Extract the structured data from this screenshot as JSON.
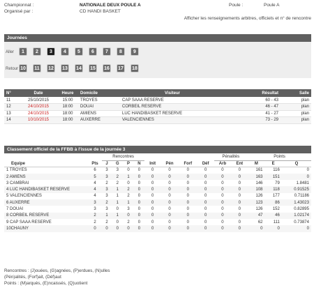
{
  "info": {
    "championnat_label": "Championnat :",
    "championnat_value": "NATIONALE DEUX POULE A",
    "poule_label": "Poule :",
    "poule_value": "Poule A",
    "organise_label": "Organisé par :",
    "organise_value": "CD HANDI BASKET",
    "link": "Afficher les renseignements arbitres, officiels et n° de rencontre"
  },
  "journees": {
    "title": "Journées",
    "aller_label": "Aller",
    "retour_label": "Retour",
    "aller": [
      "1",
      "2",
      "3",
      "4",
      "5",
      "6",
      "7",
      "8",
      "9"
    ],
    "retour": [
      "10",
      "11",
      "12",
      "13",
      "14",
      "15",
      "16",
      "17",
      "18"
    ],
    "active": "3"
  },
  "games": {
    "headers": [
      "N°",
      "Date",
      "Heure",
      "Domicile",
      "Visiteur",
      "Résultat",
      "Salle"
    ],
    "rows": [
      {
        "n": "11",
        "date": "25/10/2015",
        "heure": "15:00",
        "domicile": "TROYES",
        "visiteur": "CAP SAAA RESERVE",
        "resultat": "60 - 43",
        "salle": "plan",
        "red": false
      },
      {
        "n": "12",
        "date": "24/10/2015",
        "heure": "18:00",
        "domicile": "DOUAI",
        "visiteur": "CORBEIL RESERVE",
        "resultat": "46 - 47",
        "salle": "plan",
        "red": true
      },
      {
        "n": "13",
        "date": "24/10/2015",
        "heure": "18:00",
        "domicile": "AMIENS",
        "visiteur": "LUC HANDIBASKET RESERVE",
        "resultat": "41 - 27",
        "salle": "plan",
        "red": true
      },
      {
        "n": "14",
        "date": "10/10/2015",
        "heure": "18:00",
        "domicile": "AUXERRE",
        "visiteur": "VALENCIENNES",
        "resultat": "73 - 29",
        "salle": "plan",
        "red": true
      }
    ]
  },
  "classement": {
    "title": "Classement officiel de la FFBB à l'issue de la journée 3",
    "group_headers": {
      "rencontres": "Rencontres",
      "penalites": "Pénalités",
      "points": "Points"
    },
    "headers": [
      "Equipe",
      "Pts",
      "J",
      "G",
      "P",
      "N",
      "Init",
      "Pén",
      "Forf",
      "Déf",
      "Arb",
      "Ent",
      "M",
      "E",
      "Q"
    ],
    "rows": [
      [
        "1 TROYES",
        "6",
        "3",
        "3",
        "0",
        "0",
        "0",
        "0",
        "0",
        "0",
        "0",
        "0",
        "161",
        "116",
        "0"
      ],
      [
        "2 AMIENS",
        "5",
        "3",
        "2",
        "1",
        "0",
        "0",
        "0",
        "0",
        "0",
        "0",
        "0",
        "163",
        "151",
        "0"
      ],
      [
        "3 CAMBRAI",
        "4",
        "2",
        "2",
        "0",
        "0",
        "0",
        "0",
        "0",
        "0",
        "0",
        "0",
        "146",
        "79",
        "1.8481"
      ],
      [
        "4 LUC HANDIBASKET RESERVE",
        "4",
        "3",
        "1",
        "2",
        "0",
        "0",
        "0",
        "0",
        "0",
        "0",
        "0",
        "108",
        "118",
        "0.91525"
      ],
      [
        "5 VALENCIENNES",
        "4",
        "3",
        "1",
        "2",
        "0",
        "0",
        "0",
        "0",
        "0",
        "0",
        "0",
        "126",
        "177",
        "0.71186"
      ],
      [
        "6 AUXERRE",
        "3",
        "2",
        "1",
        "1",
        "0",
        "0",
        "0",
        "0",
        "0",
        "0",
        "0",
        "123",
        "86",
        "1.43023"
      ],
      [
        "7 DOUAI",
        "3",
        "3",
        "0",
        "3",
        "0",
        "0",
        "0",
        "0",
        "0",
        "0",
        "0",
        "126",
        "152",
        "0.82895"
      ],
      [
        "8 CORBEIL RESERVE",
        "2",
        "1",
        "1",
        "0",
        "0",
        "0",
        "0",
        "0",
        "0",
        "0",
        "0",
        "47",
        "46",
        "1.02174"
      ],
      [
        "9 CAP SAAA RESERVE",
        "2",
        "2",
        "0",
        "2",
        "0",
        "0",
        "0",
        "0",
        "0",
        "0",
        "0",
        "62",
        "111",
        "0.73874"
      ],
      [
        "10CHAUNY",
        "0",
        "0",
        "0",
        "0",
        "0",
        "0",
        "0",
        "0",
        "0",
        "0",
        "0",
        "0",
        "0",
        "0"
      ]
    ]
  },
  "legend": {
    "line1": "Rencontres : (J)ouées, (G)agnées, (P)erdues, (N)ulles",
    "line2": "(Pén)alités, (Forf)ait, (Déf)aut",
    "line3": "Points : (M)arqués, (E)ncaissés, (Q)uotient"
  }
}
